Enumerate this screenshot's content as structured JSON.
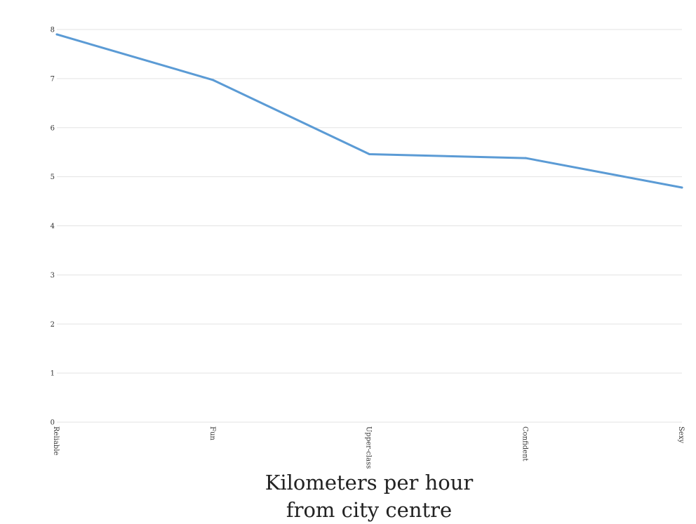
{
  "chart_data": {
    "type": "line",
    "categories": [
      "Reliable",
      "Fun",
      "Upper-class",
      "Confident",
      "Sexy"
    ],
    "series": [
      {
        "values": [
          7.9,
          6.97,
          5.46,
          5.38,
          4.78
        ]
      }
    ],
    "xlabel": "Kilometers per hour\nfrom city centre",
    "ylabel": "",
    "ylim": [
      0,
      8
    ],
    "yticks": [
      "0",
      "1",
      "2",
      "3",
      "4",
      "5",
      "6",
      "7",
      "8"
    ],
    "grid": true,
    "legend": "none",
    "colors": {
      "line": "#5b9bd5",
      "grid": "#e3e3e3",
      "text": "#333333"
    }
  }
}
